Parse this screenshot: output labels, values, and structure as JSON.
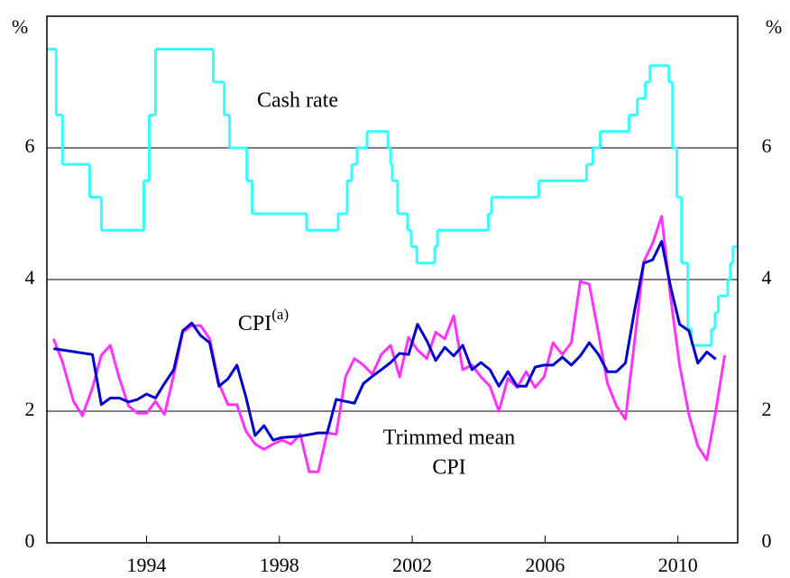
{
  "chart_data": {
    "type": "line",
    "y_unit": "%",
    "xlim": [
      1991,
      2011.8
    ],
    "xticks": [
      1994,
      1998,
      2002,
      2006,
      2010
    ],
    "ylim": [
      0,
      8
    ],
    "yticks": [
      0,
      2,
      4,
      6
    ],
    "grid": true,
    "annotations": [
      {
        "text": "Cash rate",
        "series": 0
      },
      {
        "text": "CPI",
        "sup": "(a)",
        "series": 1
      },
      {
        "text": "Trimmed mean",
        "text2": "CPI",
        "series": 2
      }
    ],
    "series": [
      {
        "name": "Cash rate",
        "color": "#33ffff",
        "step": true,
        "x": [
          1990.98,
          1991.28,
          1991.47,
          1992.29,
          1992.64,
          1993.92,
          1994.08,
          1994.27,
          1996.01,
          1996.34,
          1996.5,
          1997.02,
          1997.18,
          1998.82,
          1999.77,
          2000.04,
          2000.18,
          2000.34,
          2000.64,
          2001.27,
          2001.35,
          2001.4,
          2001.56,
          2001.86,
          2001.97,
          2002.14,
          2002.68,
          2002.76,
          2004.29,
          2004.39,
          2005.81,
          2007.25,
          2007.44,
          2007.66,
          2008.53,
          2008.78,
          2009.02,
          2009.16,
          2009.73,
          2009.84,
          2009.97,
          2010.11,
          2010.3,
          2010.41,
          2011.01,
          2011.12,
          2011.22,
          2011.5,
          2011.58,
          2011.66
        ],
        "values": [
          7.5,
          6.5,
          5.75,
          5.25,
          4.75,
          5.5,
          6.5,
          7.5,
          7.0,
          6.5,
          6.0,
          5.5,
          5.0,
          4.75,
          5.0,
          5.5,
          5.75,
          6.0,
          6.25,
          6.0,
          5.75,
          5.5,
          5.0,
          4.75,
          4.5,
          4.25,
          4.5,
          4.75,
          5.0,
          5.25,
          5.5,
          5.75,
          6.0,
          6.25,
          6.5,
          6.75,
          7.0,
          7.25,
          7.0,
          6.0,
          5.25,
          4.25,
          3.25,
          3.0,
          3.25,
          3.5,
          3.75,
          4.0,
          4.25,
          4.5
        ]
      },
      {
        "name": "CPI",
        "color": "#ff33ff",
        "x": [
          1991.2,
          1991.47,
          1991.8,
          1992.07,
          1992.37,
          1992.64,
          1992.91,
          1993.18,
          1993.46,
          1993.73,
          1994.0,
          1994.27,
          1994.54,
          1994.82,
          1995.09,
          1995.36,
          1995.63,
          1995.9,
          1996.18,
          1996.45,
          1996.72,
          1996.99,
          1997.27,
          1997.54,
          1997.81,
          1998.08,
          1998.35,
          1998.63,
          1998.9,
          1999.17,
          1999.44,
          1999.71,
          1999.99,
          2000.26,
          2000.53,
          2000.8,
          2001.07,
          2001.35,
          2001.62,
          2001.89,
          2002.16,
          2002.44,
          2002.71,
          2002.98,
          2003.25,
          2003.52,
          2003.8,
          2004.07,
          2004.34,
          2004.61,
          2004.88,
          2005.16,
          2005.43,
          2005.7,
          2005.97,
          2006.24,
          2006.52,
          2006.79,
          2007.06,
          2007.33,
          2007.61,
          2007.88,
          2008.15,
          2008.42,
          2008.69,
          2008.97,
          2009.24,
          2009.51,
          2009.78,
          2010.05,
          2010.33,
          2010.6,
          2010.87,
          2011.14,
          2011.41
        ],
        "values": [
          3.1,
          2.75,
          2.15,
          1.93,
          2.35,
          2.85,
          3.0,
          2.5,
          2.08,
          1.97,
          1.97,
          2.15,
          1.95,
          2.55,
          3.2,
          3.3,
          3.3,
          3.1,
          2.42,
          2.1,
          2.1,
          1.7,
          1.5,
          1.42,
          1.5,
          1.56,
          1.5,
          1.65,
          1.08,
          1.08,
          1.67,
          1.65,
          2.52,
          2.8,
          2.7,
          2.56,
          2.86,
          3.0,
          2.52,
          3.12,
          2.93,
          2.8,
          3.2,
          3.1,
          3.45,
          2.63,
          2.7,
          2.52,
          2.38,
          2.0,
          2.5,
          2.36,
          2.6,
          2.36,
          2.52,
          3.04,
          2.86,
          3.04,
          3.97,
          3.93,
          3.18,
          2.42,
          2.08,
          1.88,
          3.04,
          4.27,
          4.55,
          4.96,
          3.73,
          2.7,
          1.95,
          1.47,
          1.26,
          2.0,
          2.85
        ]
      },
      {
        "name": "Trimmed mean CPI",
        "color": "#0000cc",
        "x": [
          1991.2,
          1992.37,
          1992.64,
          1992.91,
          1993.18,
          1993.46,
          1993.73,
          1994.0,
          1994.27,
          1994.54,
          1994.82,
          1995.09,
          1995.36,
          1995.63,
          1995.9,
          1996.18,
          1996.45,
          1996.72,
          1996.99,
          1997.27,
          1997.54,
          1997.81,
          1998.08,
          1998.63,
          1999.17,
          1999.44,
          1999.71,
          2000.26,
          2000.53,
          2000.8,
          2001.07,
          2001.35,
          2001.62,
          2001.89,
          2002.16,
          2002.44,
          2002.71,
          2002.98,
          2003.25,
          2003.52,
          2003.8,
          2004.07,
          2004.34,
          2004.61,
          2004.88,
          2005.16,
          2005.43,
          2005.7,
          2005.97,
          2006.24,
          2006.52,
          2006.79,
          2007.06,
          2007.33,
          2007.61,
          2007.88,
          2008.15,
          2008.42,
          2008.69,
          2008.97,
          2009.24,
          2009.51,
          2009.78,
          2010.05,
          2010.33,
          2010.6,
          2010.87,
          2011.14
        ],
        "values": [
          2.95,
          2.86,
          2.1,
          2.2,
          2.2,
          2.14,
          2.18,
          2.26,
          2.2,
          2.42,
          2.63,
          3.22,
          3.34,
          3.15,
          3.04,
          2.38,
          2.49,
          2.7,
          2.22,
          1.63,
          1.78,
          1.56,
          1.6,
          1.62,
          1.67,
          1.67,
          2.18,
          2.12,
          2.42,
          2.53,
          2.63,
          2.74,
          2.88,
          2.86,
          3.32,
          3.07,
          2.77,
          2.97,
          2.84,
          3.0,
          2.63,
          2.74,
          2.63,
          2.38,
          2.6,
          2.38,
          2.38,
          2.67,
          2.7,
          2.7,
          2.82,
          2.7,
          2.84,
          3.04,
          2.86,
          2.6,
          2.6,
          2.73,
          3.52,
          4.25,
          4.3,
          4.58,
          3.89,
          3.32,
          3.22,
          2.73,
          2.9,
          2.79
        ]
      }
    ]
  }
}
